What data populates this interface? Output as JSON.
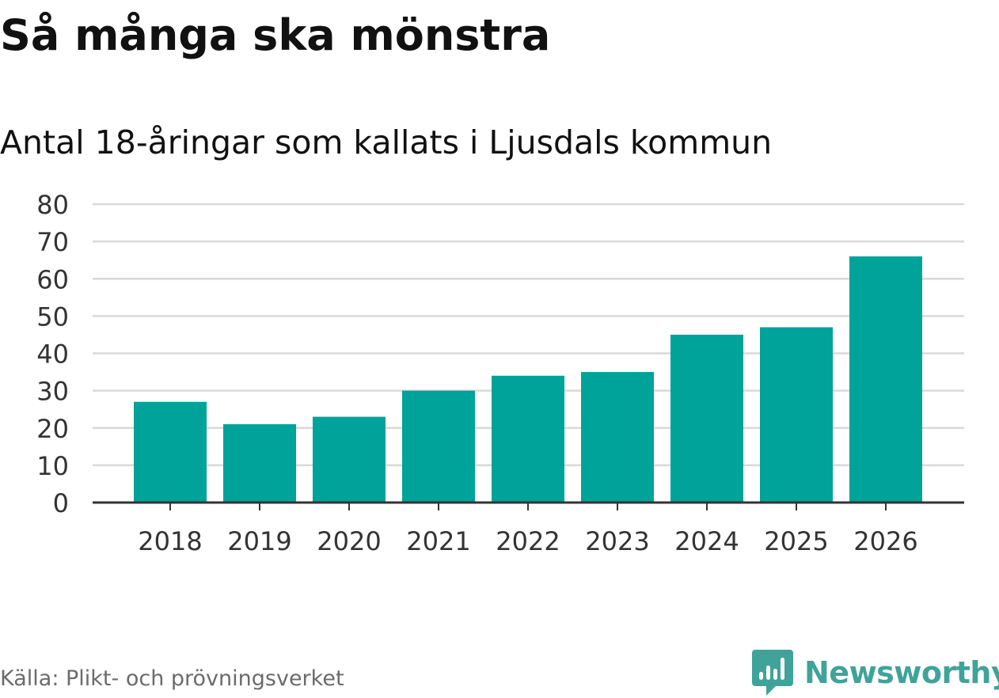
{
  "header": {
    "title": "Så många ska mönstra",
    "subtitle": "Antal 18-åringar som kallats i Ljusdals kommun"
  },
  "footer": {
    "source": "Källa: Plikt- och prövningsverket",
    "brand": "Newsworthy",
    "brand_icon": "bar-chart-badge-icon"
  },
  "colors": {
    "bar": "#00a39a",
    "grid": "#d9d9d9",
    "axis": "#333333",
    "brand": "#3fa39a"
  },
  "chart_data": {
    "type": "bar",
    "title": "Så många ska mönstra",
    "subtitle": "Antal 18-åringar som kallats i Ljusdals kommun",
    "xlabel": "",
    "ylabel": "",
    "categories": [
      "2018",
      "2019",
      "2020",
      "2021",
      "2022",
      "2023",
      "2024",
      "2025",
      "2026"
    ],
    "values": [
      27,
      21,
      23,
      30,
      34,
      35,
      45,
      47,
      66
    ],
    "ylim": [
      0,
      80
    ],
    "yticks": [
      0,
      10,
      20,
      30,
      40,
      50,
      60,
      70,
      80
    ],
    "grid": true,
    "legend": "none"
  }
}
